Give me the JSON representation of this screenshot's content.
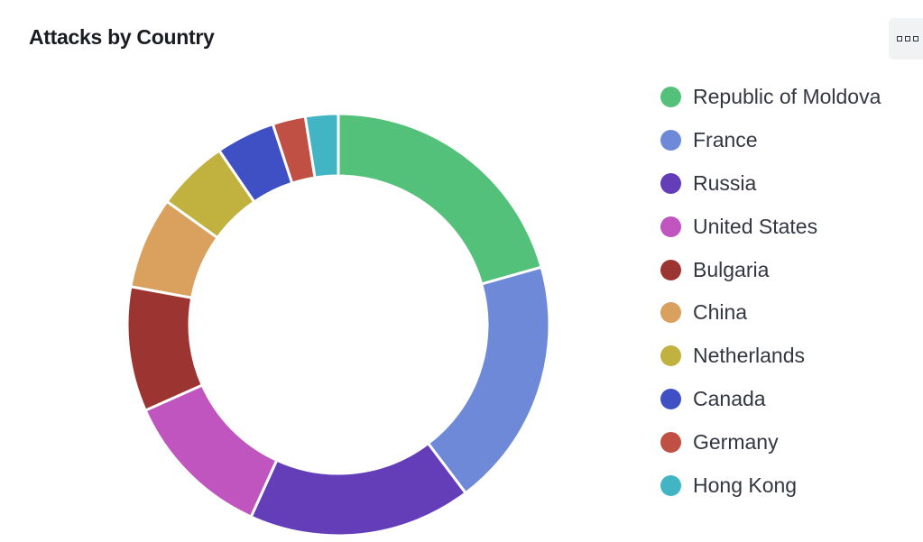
{
  "panel": {
    "title": "Attacks by Country",
    "options_icon": "options-grid-icon"
  },
  "chart_data": {
    "type": "pie",
    "variant": "donut",
    "title": "Attacks by Country",
    "legend_position": "right",
    "categories": [
      "Republic of Moldova",
      "France",
      "Russia",
      "United States",
      "Bulgaria",
      "China",
      "Netherlands",
      "Canada",
      "Germany",
      "Hong Kong"
    ],
    "values": [
      20.5,
      19.0,
      17.0,
      11.5,
      9.5,
      7.0,
      5.5,
      4.5,
      2.5,
      2.5
    ],
    "colors": [
      "#54c17a",
      "#6e89d8",
      "#643db8",
      "#c055c0",
      "#9c3431",
      "#d9a05e",
      "#c1b13f",
      "#3f50c5",
      "#c05043",
      "#42b5c4"
    ]
  }
}
